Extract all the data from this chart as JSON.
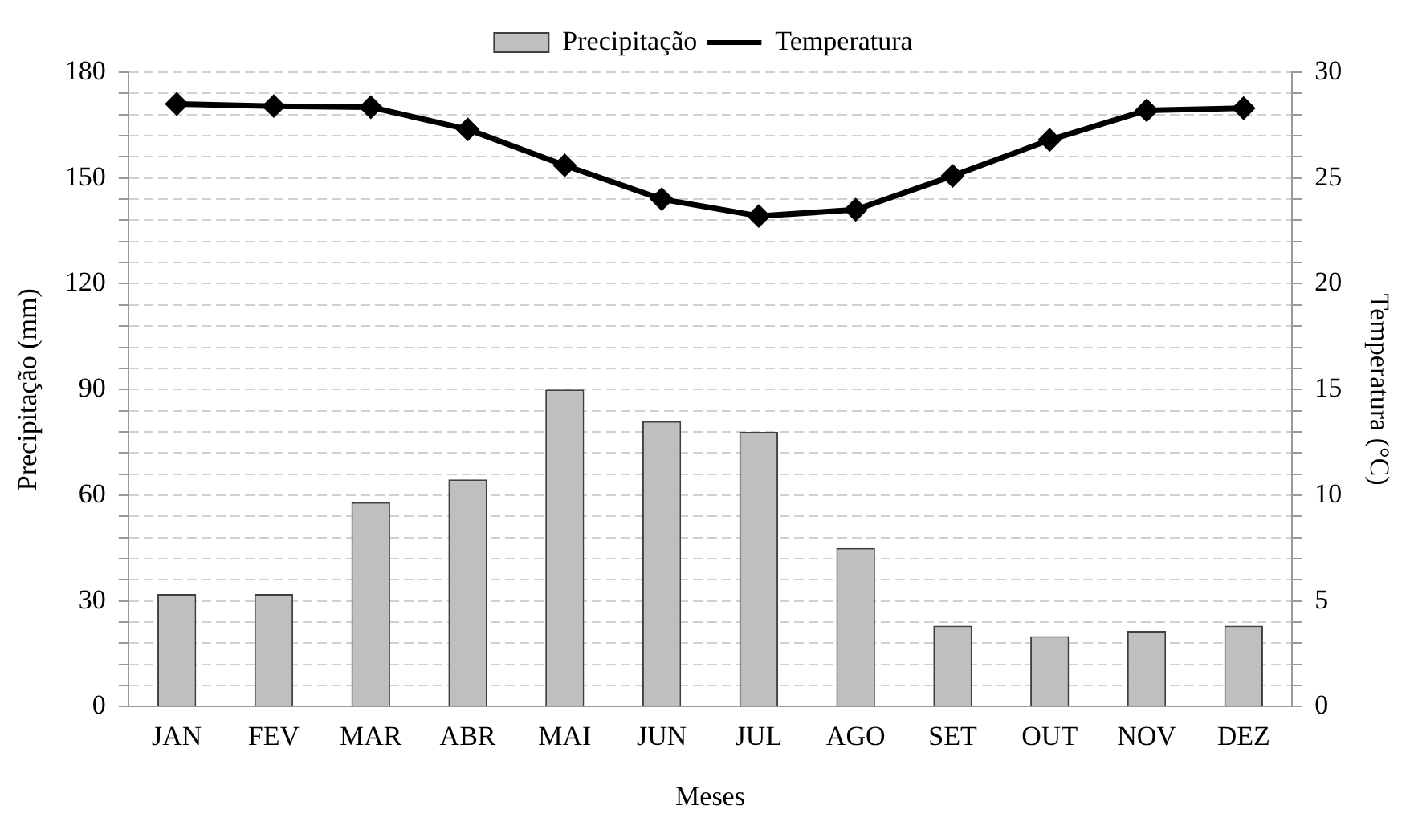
{
  "chart_data": {
    "type": "bar",
    "xlabel": "Meses",
    "ylabel": "Precipitação (mm)",
    "y2label": "Temperatura (°C)",
    "categories": [
      "JAN",
      "FEV",
      "MAR",
      "ABR",
      "MAI",
      "JUN",
      "JUL",
      "AGO",
      "SET",
      "OUT",
      "NOV",
      "DEZ"
    ],
    "series": [
      {
        "name": "Precipitação",
        "color": "#bfbfbf",
        "values": [
          32,
          32,
          58,
          64.5,
          90,
          81,
          78,
          45,
          23,
          20,
          21.5,
          23
        ]
      },
      {
        "name": "Temperatura",
        "type": "line",
        "axis": "y2",
        "color": "#000000",
        "marker": "diamond",
        "values": [
          28.5,
          28.4,
          28.35,
          27.3,
          25.6,
          24.0,
          23.2,
          23.5,
          25.1,
          26.8,
          28.2,
          28.3
        ]
      }
    ],
    "ylim": [
      0,
      180
    ],
    "yticks": [
      0,
      {
        "value": 6,
        "label": null
      },
      {
        "value": 12,
        "label": null
      },
      {
        "value": 18,
        "label": null
      },
      {
        "value": 24,
        "label": null
      },
      30,
      {
        "value": 36,
        "label": null
      },
      {
        "value": 42,
        "label": null
      },
      {
        "value": 48,
        "label": null
      },
      {
        "value": 54,
        "label": null
      },
      60,
      {
        "value": 66,
        "label": null
      },
      {
        "value": 72,
        "label": null
      },
      {
        "value": 78,
        "label": null
      },
      {
        "value": 84,
        "label": null
      },
      90,
      {
        "value": 96,
        "label": null
      },
      {
        "value": 102,
        "label": null
      },
      {
        "value": 108,
        "label": null
      },
      {
        "value": 114,
        "label": null
      },
      120,
      {
        "value": 126,
        "label": null
      },
      {
        "value": 132,
        "label": null
      },
      {
        "value": 138,
        "label": null
      },
      {
        "value": 144,
        "label": null
      },
      150,
      {
        "value": 156,
        "label": null
      },
      {
        "value": 162,
        "label": null
      },
      {
        "value": 168,
        "label": null
      },
      {
        "value": 174,
        "label": null
      },
      180
    ],
    "y2lim": [
      0,
      30
    ],
    "y2ticks": [
      0,
      {
        "value": 1,
        "label": null
      },
      {
        "value": 2,
        "label": null
      },
      {
        "value": 3,
        "label": null
      },
      {
        "value": 4,
        "label": null
      },
      5,
      {
        "value": 6,
        "label": null
      },
      {
        "value": 7,
        "label": null
      },
      {
        "value": 8,
        "label": null
      },
      {
        "value": 9,
        "label": null
      },
      10,
      {
        "value": 11,
        "label": null
      },
      {
        "value": 12,
        "label": null
      },
      {
        "value": 13,
        "label": null
      },
      {
        "value": 14,
        "label": null
      },
      15,
      {
        "value": 16,
        "label": null
      },
      {
        "value": 17,
        "label": null
      },
      {
        "value": 18,
        "label": null
      },
      {
        "value": 19,
        "label": null
      },
      20,
      {
        "value": 21,
        "label": null
      },
      {
        "value": 22,
        "label": null
      },
      {
        "value": 23,
        "label": null
      },
      {
        "value": 24,
        "label": null
      },
      25,
      {
        "value": 26,
        "label": null
      },
      {
        "value": 27,
        "label": null
      },
      {
        "value": 28,
        "label": null
      },
      {
        "value": 29,
        "label": null
      },
      30
    ],
    "grid": "y",
    "legend": "top",
    "line_style": "solid"
  }
}
